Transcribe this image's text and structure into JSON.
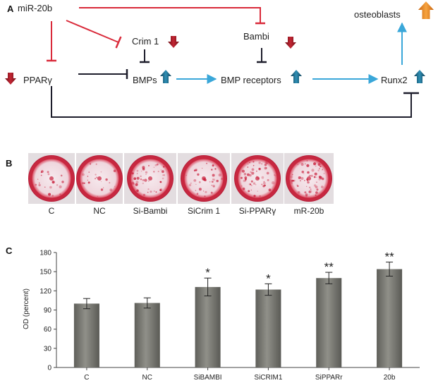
{
  "panels": {
    "a": "A",
    "b": "B",
    "c": "C"
  },
  "pathway": {
    "nodes": {
      "mir20b": "miR-20b",
      "crim1": "Crim 1",
      "bambi": "Bambi",
      "osteoblasts": "osteoblasts",
      "ppary": "PPARγ",
      "bmps": "BMPs",
      "bmp_receptors": "BMP receptors",
      "runx2": "Runx2"
    },
    "colors": {
      "inhibit_red": "#d92a3a",
      "inhibit_dark": "#1d1d2b",
      "activate_blue": "#3aa7d9",
      "down_arrow": "#a31a24",
      "up_arrow": "#1f6d8c",
      "big_up_arrow": "#f08a1c"
    }
  },
  "wells": {
    "labels": [
      "C",
      "NC",
      "Si-Bambi",
      "SiCrim 1",
      "Si-PPARγ",
      "mR-20b"
    ],
    "stain_intensity": [
      0.15,
      0.2,
      0.55,
      0.45,
      0.75,
      0.9
    ]
  },
  "chart_data": {
    "type": "bar",
    "categories": [
      "C",
      "NC",
      "SiBAMBI",
      "SiCRIM1",
      "SiPPARr",
      "20b"
    ],
    "values": [
      100,
      101,
      126,
      122,
      140,
      154
    ],
    "errors": [
      8,
      8,
      14,
      9,
      9,
      11
    ],
    "significance": [
      "",
      "",
      "*",
      "*",
      "**",
      "**"
    ],
    "ylabel": "OD (percent)",
    "ylim": [
      0,
      180
    ],
    "yticks": [
      "0",
      "30",
      "60",
      "90",
      "120",
      "150",
      "180"
    ],
    "bar_color": "#7b7b75",
    "grid": false
  }
}
